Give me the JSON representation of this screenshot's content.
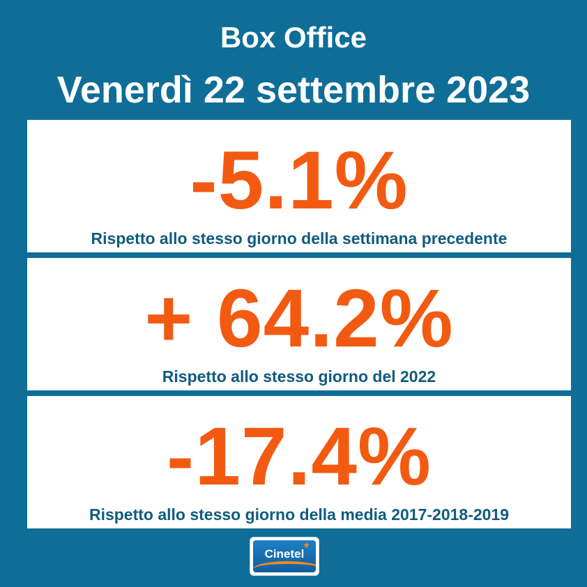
{
  "header": {
    "title": "Box Office",
    "date": "Venerdì 22 settembre 2023"
  },
  "stats": [
    {
      "value": "-5.1%",
      "caption": "Rispetto allo stesso giorno della settimana precedente"
    },
    {
      "value": "+ 64.2%",
      "caption": "Rispetto allo stesso giorno del 2022"
    },
    {
      "value": "-17.4%",
      "caption": "Rispetto allo stesso giorno della media 2017-2018-2019"
    }
  ],
  "logo": {
    "text": "Cinetel",
    "icon": "star-icon"
  },
  "colors": {
    "background": "#0f6e97",
    "accent": "#f35a11",
    "caption": "#0f5b80"
  }
}
